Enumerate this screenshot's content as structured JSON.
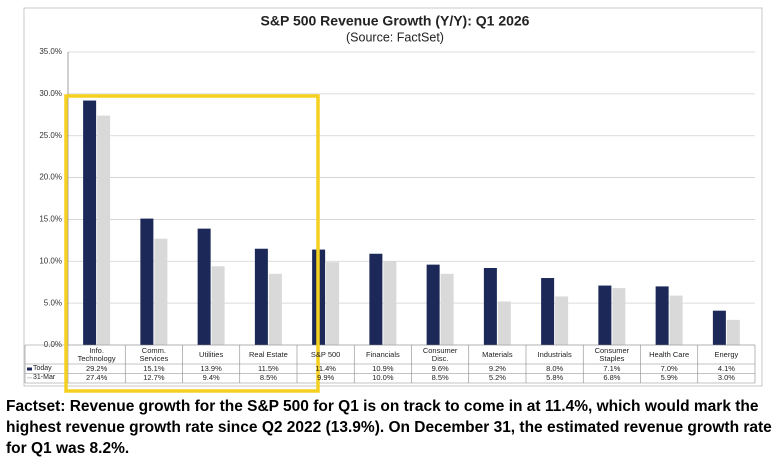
{
  "chart_data": {
    "type": "bar",
    "title": "S&P 500 Revenue Growth (Y/Y): Q1 2026",
    "subtitle": "(Source: FactSet)",
    "categories": [
      "Info. Technology",
      "Comm. Services",
      "Utilities",
      "Real Estate",
      "S&P 500",
      "Financials",
      "Consumer Disc.",
      "Materials",
      "Industrials",
      "Consumer Staples",
      "Health Care",
      "Energy"
    ],
    "series": [
      {
        "name": "Today",
        "color": "#1b2858",
        "values": [
          29.2,
          15.1,
          13.9,
          11.5,
          11.4,
          10.9,
          9.6,
          9.2,
          8.0,
          7.1,
          7.0,
          4.1
        ],
        "value_labels": [
          "29.2%",
          "15.1%",
          "13.9%",
          "11.5%",
          "11.4%",
          "10.9%",
          "9.6%",
          "9.2%",
          "8.0%",
          "7.1%",
          "7.0%",
          "4.1%"
        ]
      },
      {
        "name": "31-Mar",
        "color": "#d9d9d9",
        "values": [
          27.4,
          12.7,
          9.4,
          8.5,
          9.9,
          10.0,
          8.5,
          5.2,
          5.8,
          6.8,
          5.9,
          3.0
        ],
        "value_labels": [
          "27.4%",
          "12.7%",
          "9.4%",
          "8.5%",
          "9.9%",
          "10.0%",
          "8.5%",
          "5.2%",
          "5.8%",
          "6.8%",
          "5.9%",
          "3.0%"
        ]
      }
    ],
    "ylim": [
      0,
      35
    ],
    "yticks": [
      {
        "value": 0,
        "label": "0.0%"
      },
      {
        "value": 5,
        "label": "5.0%"
      },
      {
        "value": 10,
        "label": "10.0%"
      },
      {
        "value": 15,
        "label": "15.0%"
      },
      {
        "value": 20,
        "label": "20.0%"
      },
      {
        "value": 25,
        "label": "25.0%"
      },
      {
        "value": 30,
        "label": "30.0%"
      },
      {
        "value": 35,
        "label": "35.0%"
      }
    ],
    "grid": true
  },
  "caption": "Factset: Revenue growth for the S&P 500 for Q1 is on track to come in at 11.4%, which would mark the highest revenue growth rate since Q2 2022 (13.9%). On December 31, the estimated revenue growth rate for Q1 was 8.2%."
}
